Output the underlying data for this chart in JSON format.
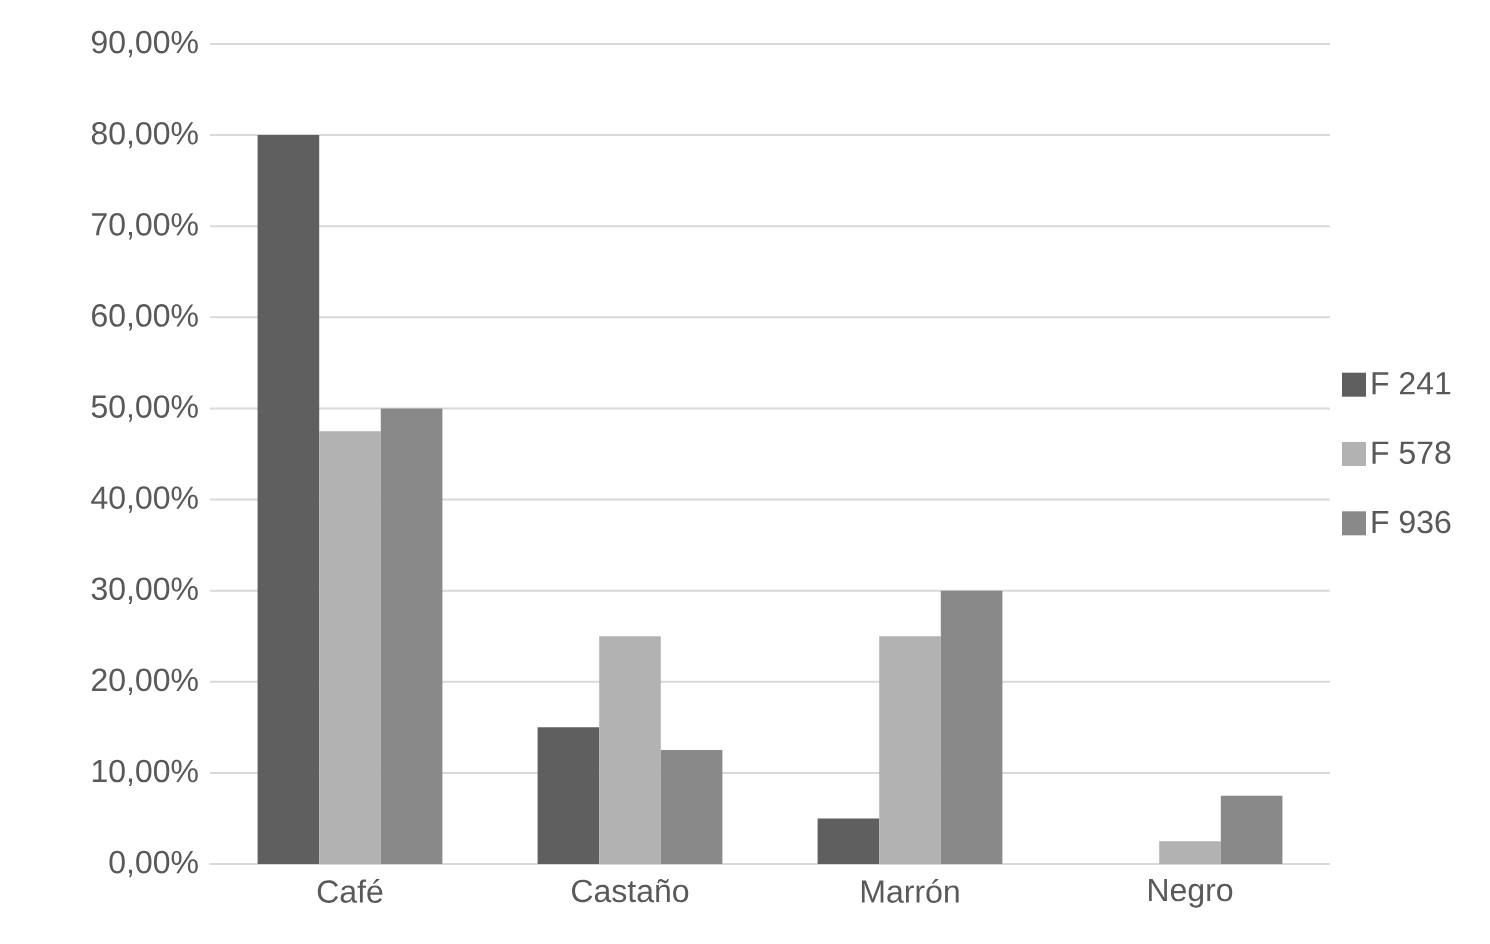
{
  "chart_data": {
    "type": "bar",
    "categories": [
      "Café",
      "Castaño",
      "Marrón",
      "Negro"
    ],
    "series": [
      {
        "name": "F 241",
        "color": "#5f5f5f",
        "values": [
          80,
          15,
          5,
          0
        ]
      },
      {
        "name": "F 578",
        "color": "#b2b2b2",
        "values": [
          47.5,
          25,
          25,
          2.5
        ]
      },
      {
        "name": "F 936",
        "color": "#898989",
        "values": [
          50,
          12.5,
          30,
          7.5
        ]
      }
    ],
    "ylim": [
      0,
      90
    ],
    "yticks": [
      {
        "value": 0,
        "label": "0,00%"
      },
      {
        "value": 10,
        "label": "10,00%"
      },
      {
        "value": 20,
        "label": "20,00%"
      },
      {
        "value": 30,
        "label": "30,00%"
      },
      {
        "value": 40,
        "label": "40,00%"
      },
      {
        "value": 50,
        "label": "50,00%"
      },
      {
        "value": 60,
        "label": "60,00%"
      },
      {
        "value": 70,
        "label": "70,00%"
      },
      {
        "value": 80,
        "label": "80,00%"
      },
      {
        "value": 90,
        "label": "90,00%"
      }
    ],
    "grid": "y",
    "legend": "right"
  }
}
